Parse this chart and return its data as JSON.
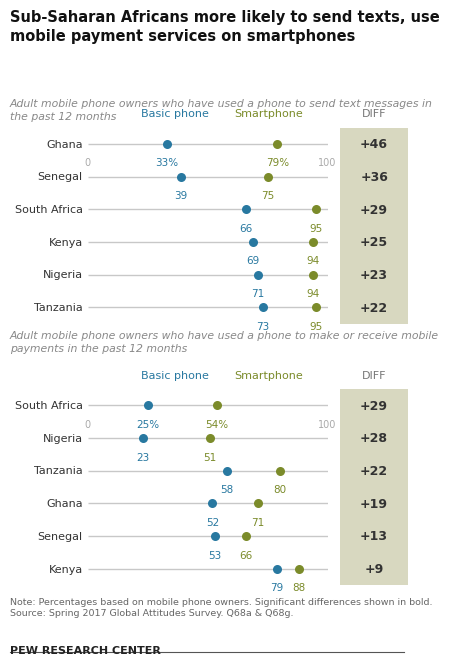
{
  "title": "Sub-Saharan Africans more likely to send texts, use\nmobile payment services on smartphones",
  "subtitle1": "Adult mobile phone owners who have used a phone to send text messages in\nthe past 12 months",
  "subtitle2": "Adult mobile phone owners who have used a phone to make or receive mobile\npayments in the past 12 months",
  "note": "Note: Percentages based on mobile phone owners. Significant differences shown in bold.\nSource: Spring 2017 Global Attitudes Survey. Q68a & Q68g.",
  "source": "PEW RESEARCH CENTER",
  "basic_color": "#2878A0",
  "smartphone_color": "#7B8B2A",
  "diff_bg": "#D8D8C0",
  "gray_line": "#C8C8C8",
  "section1": {
    "countries": [
      "Ghana",
      "Senegal",
      "South Africa",
      "Kenya",
      "Nigeria",
      "Tanzania"
    ],
    "basic": [
      33,
      39,
      66,
      69,
      71,
      73
    ],
    "smartphone": [
      79,
      75,
      95,
      94,
      94,
      95
    ],
    "diff": [
      "+46",
      "+36",
      "+29",
      "+25",
      "+23",
      "+22"
    ],
    "pct_row": 0
  },
  "section2": {
    "countries": [
      "South Africa",
      "Nigeria",
      "Tanzania",
      "Ghana",
      "Senegal",
      "Kenya"
    ],
    "basic": [
      25,
      23,
      58,
      52,
      53,
      79
    ],
    "smartphone": [
      54,
      51,
      80,
      71,
      66,
      88
    ],
    "diff": [
      "+29",
      "+28",
      "+22",
      "+19",
      "+13",
      "+9"
    ],
    "pct_row": 0
  }
}
